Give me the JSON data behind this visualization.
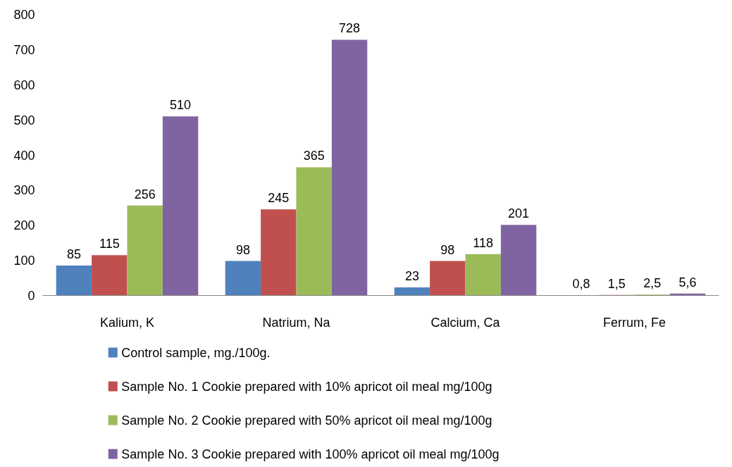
{
  "chart_data": {
    "type": "bar",
    "categories": [
      "Kalium, K",
      "Natrium, Na",
      "Calcium, Ca",
      "Ferrum, Fe"
    ],
    "series": [
      {
        "name": "Control sample, mg./100g.",
        "color": "#4f81bd",
        "values": [
          85,
          98,
          23,
          0.8
        ],
        "value_labels": [
          "85",
          "98",
          "23",
          "0,8"
        ]
      },
      {
        "name": "Sample No. 1  Cookie prepared with 10% apricot oil meal mg/100g",
        "color": "#c0504d",
        "values": [
          115,
          245,
          98,
          1.5
        ],
        "value_labels": [
          "115",
          "245",
          "98",
          "1,5"
        ]
      },
      {
        "name": "Sample No. 2  Cookie prepared with 50% apricot oil meal mg/100g",
        "color": "#9bbb59",
        "values": [
          256,
          365,
          118,
          2.5
        ],
        "value_labels": [
          "256",
          "365",
          "118",
          "2,5"
        ]
      },
      {
        "name": "Sample No. 3  Cookie prepared with 100% apricot oil meal mg/100g",
        "color": "#8064a2",
        "values": [
          510,
          728,
          201,
          5.6
        ],
        "value_labels": [
          "510",
          "728",
          "201",
          "5,6"
        ]
      }
    ],
    "ylim": [
      0,
      800
    ],
    "yticks": [
      0,
      100,
      200,
      300,
      400,
      500,
      600,
      700,
      800
    ],
    "grid": false,
    "legend": "bottom"
  }
}
